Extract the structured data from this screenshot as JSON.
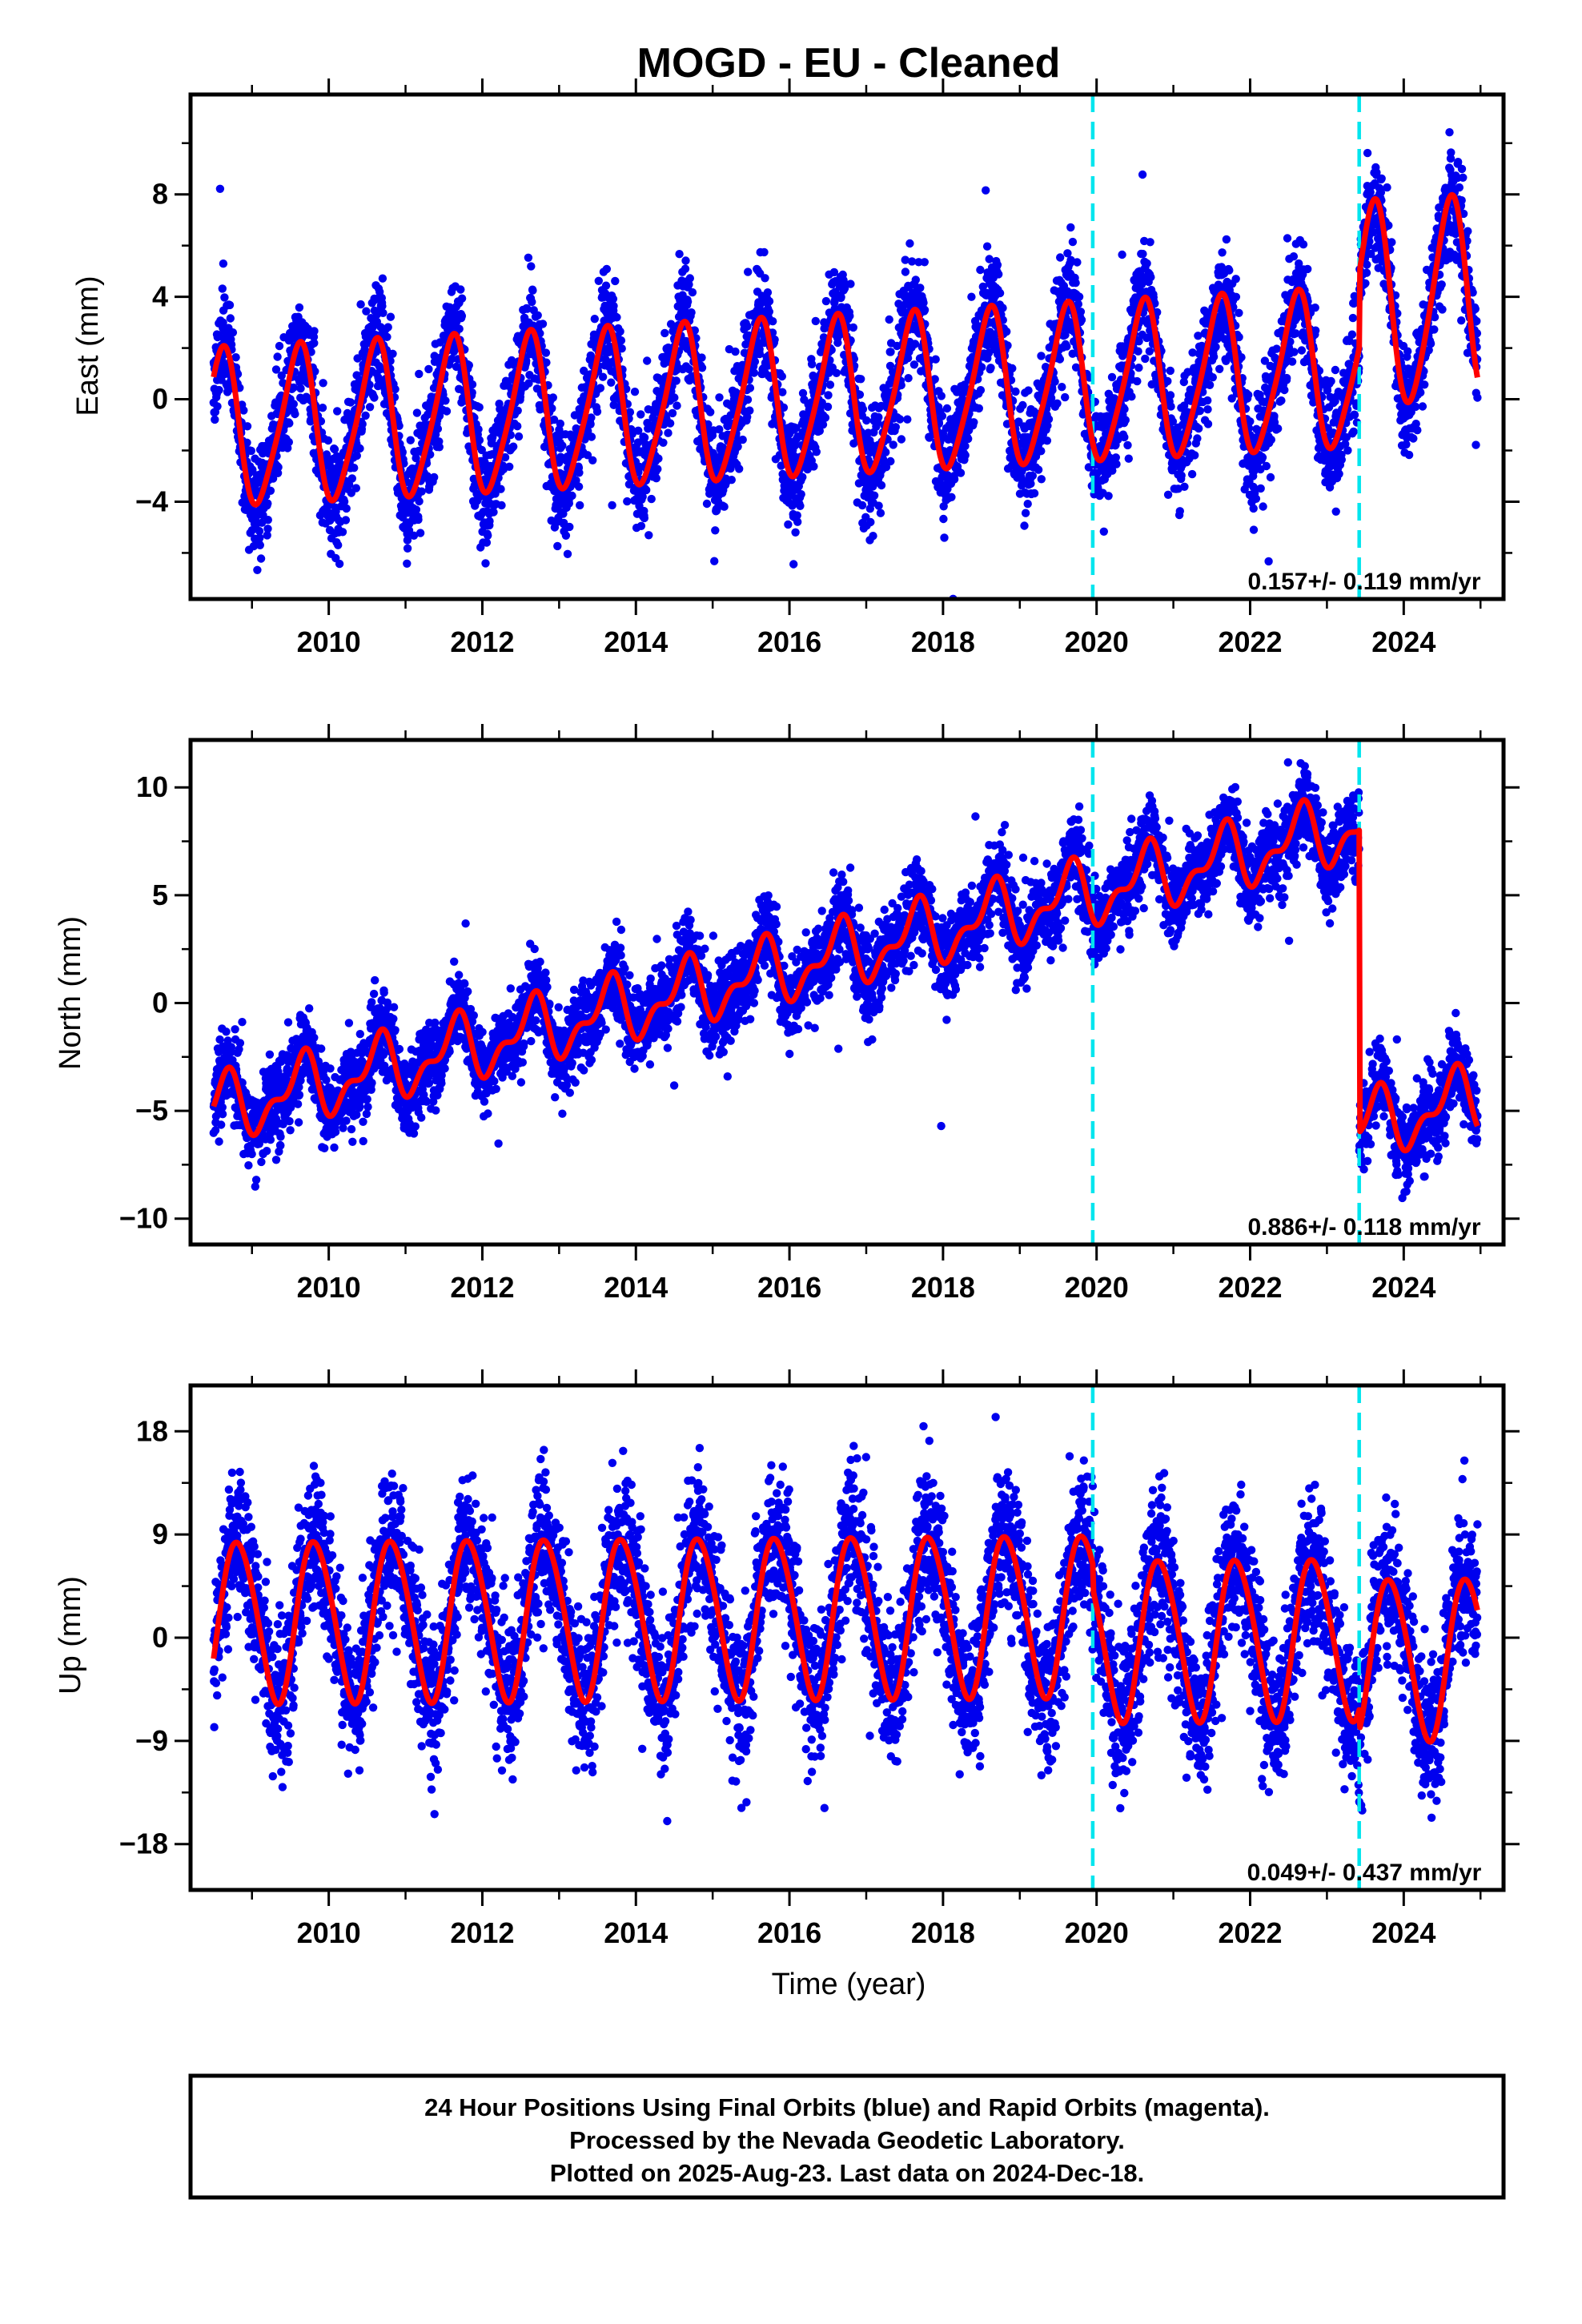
{
  "title": "MOGD  - EU - Cleaned",
  "colors": {
    "points": "#0000ee",
    "model": "#ff0000",
    "event_line": "#00e5ee",
    "frame": "#000000"
  },
  "chart_data": [
    {
      "type": "scatter",
      "component": "east",
      "title": "MOGD  - EU - Cleaned",
      "xlabel": "",
      "ylabel": "East (mm)",
      "xlim": [
        2008.2,
        2025.3
      ],
      "ylim": [
        -7.8,
        11.9
      ],
      "x_ticks": [
        2010,
        2012,
        2014,
        2016,
        2018,
        2020,
        2022,
        2024
      ],
      "x_tick_labels": [
        "2010",
        "2012",
        "2014",
        "2016",
        "2018",
        "2020",
        "2022",
        "2024"
      ],
      "y_ticks": [
        -4,
        0,
        4,
        8
      ],
      "y_tick_labels": [
        "−4",
        "0",
        "4",
        "8"
      ],
      "event_lines": [
        2019.95,
        2023.42
      ],
      "rate_text": "0.157+/- 0.119 mm/yr",
      "model": {
        "start": 2008.5,
        "end": 2024.96,
        "offset": -1.2,
        "trend": 0.157,
        "amp_annual": 3.0,
        "phase_annual": 2.18,
        "amp_semi": 0.5,
        "phase_semi": 0.9,
        "steps": [
          {
            "t": 2023.42,
            "dy": 2.5
          }
        ],
        "late_amp_boost": {
          "t": 2023.42,
          "extra_amp": 0.9
        }
      },
      "noise": {
        "sd": 1.05,
        "outlier_rate": 0.008,
        "outlier_sd": 2.5,
        "seed": 11
      },
      "series": [
        {
          "name": "24 Hour Positions (Final Orbits)"
        },
        {
          "name": "Model fit"
        }
      ]
    },
    {
      "type": "scatter",
      "component": "north",
      "title": "",
      "xlabel": "",
      "ylabel": "North (mm)",
      "xlim": [
        2008.2,
        2025.3
      ],
      "ylim": [
        -11.2,
        12.2
      ],
      "x_ticks": [
        2010,
        2012,
        2014,
        2016,
        2018,
        2020,
        2022,
        2024
      ],
      "x_tick_labels": [
        "2010",
        "2012",
        "2014",
        "2016",
        "2018",
        "2020",
        "2022",
        "2024"
      ],
      "y_ticks": [
        -10,
        -5,
        0,
        5,
        10
      ],
      "y_tick_labels": [
        "−10",
        "−5",
        "0",
        "5",
        "10"
      ],
      "event_lines": [
        2019.95,
        2023.42
      ],
      "rate_text": "0.886+/- 0.118 mm/yr",
      "model": {
        "start": 2008.5,
        "end": 2024.96,
        "offset": -5.0,
        "trend": 0.886,
        "amp_annual": 1.3,
        "phase_annual": 2.4,
        "amp_semi": 0.7,
        "phase_semi": 1.3,
        "steps": [
          {
            "t": 2023.42,
            "dy": -14.0
          }
        ]
      },
      "noise": {
        "sd": 0.95,
        "outlier_rate": 0.006,
        "outlier_sd": 2.5,
        "seed": 23
      },
      "series": [
        {
          "name": "24 Hour Positions (Final Orbits)"
        },
        {
          "name": "Model fit"
        }
      ]
    },
    {
      "type": "scatter",
      "component": "up",
      "title": "",
      "xlabel": "Time (year)",
      "ylabel": "Up (mm)",
      "xlim": [
        2008.2,
        2025.3
      ],
      "ylim": [
        -22,
        22
      ],
      "x_ticks": [
        2010,
        2012,
        2014,
        2016,
        2018,
        2020,
        2022,
        2024
      ],
      "x_tick_labels": [
        "2010",
        "2012",
        "2014",
        "2016",
        "2018",
        "2020",
        "2022",
        "2024"
      ],
      "y_ticks": [
        -18,
        -9,
        0,
        9,
        18
      ],
      "y_tick_labels": [
        "−18",
        "−9",
        "0",
        "9",
        "18"
      ],
      "event_lines": [
        2019.95,
        2023.42
      ],
      "rate_text": "0.049+/- 0.437 mm/yr",
      "model": {
        "start": 2008.5,
        "end": 2024.96,
        "offset": 1.5,
        "trend": 0.049,
        "amp_annual": 7.0,
        "phase_annual": 3.6,
        "amp_semi": 0.6,
        "phase_semi": 0.4,
        "steps": [
          {
            "t": 2019.95,
            "dy": -2.2
          },
          {
            "t": 2023.42,
            "dy": -1.8
          }
        ]
      },
      "noise": {
        "sd": 3.1,
        "outlier_rate": 0.01,
        "outlier_sd": 6.0,
        "seed": 37
      },
      "series": [
        {
          "name": "24 Hour Positions (Final Orbits)"
        },
        {
          "name": "Model fit"
        }
      ]
    }
  ],
  "footer": {
    "line1": "24 Hour Positions Using Final Orbits (blue) and Rapid Orbits (magenta).",
    "line2": "Processed by the Nevada Geodetic Laboratory.",
    "line3": "Plotted on 2025-Aug-23. Last data on 2024-Dec-18."
  }
}
